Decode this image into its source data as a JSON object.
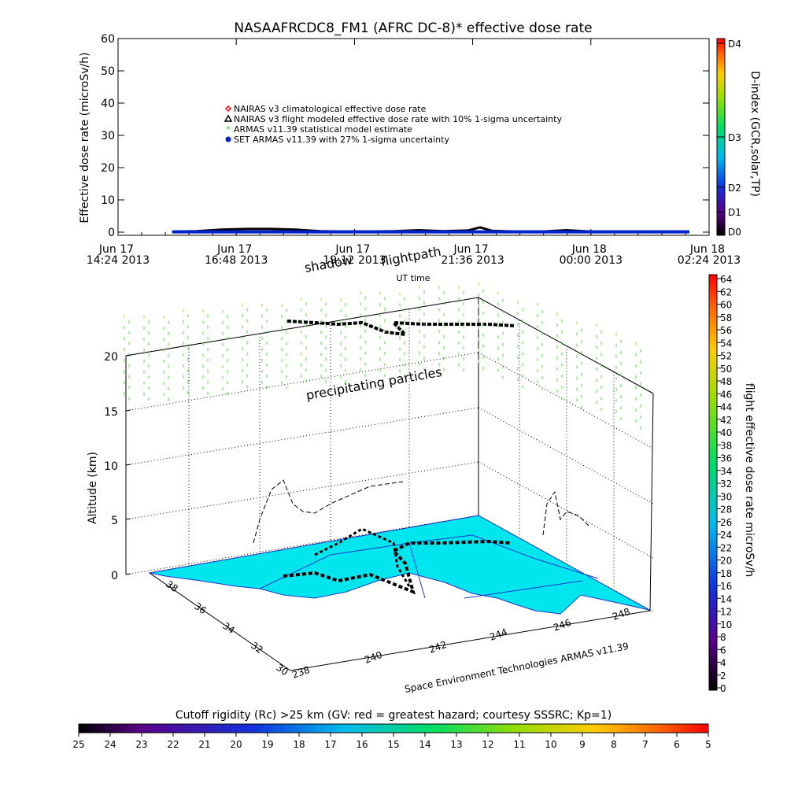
{
  "chart_data": [
    {
      "type": "line",
      "title": "NASAAFRCDC8_FM1 (AFRC DC-8)* effective dose rate",
      "ylabel": "Effective dose rate (microSv/h)",
      "xlabel": "UT time",
      "ylim": [
        0,
        60
      ],
      "yticks": [
        "0",
        "10",
        "20",
        "30",
        "40",
        "50",
        "60"
      ],
      "xticks": [
        {
          "l1": "Jun 17",
          "l2": "14:24 2013"
        },
        {
          "l1": "Jun 17",
          "l2": "16:48 2013"
        },
        {
          "l1": "Jun 17",
          "l2": "19:12 2013"
        },
        {
          "l1": "Jun 17",
          "l2": "21:36 2013"
        },
        {
          "l1": "Jun 18",
          "l2": "00:00 2013"
        },
        {
          "l1": "Jun 18",
          "l2": "02:24 2013"
        }
      ],
      "legend": [
        {
          "label": "NAIRAS v3 climatological effective dose rate",
          "color": "#ff0000",
          "marker": "diamond"
        },
        {
          "label": "NAIRAS v3 flight modeled effective dose rate with 10% 1-sigma uncertainty",
          "color": "#000000",
          "marker": "triangle"
        },
        {
          "label": "ARMAS v11.39 statistical model estimate",
          "color": "#33cc33",
          "marker": "star"
        },
        {
          "label": "SET ARMAS v11.39 with 27% 1-sigma uncertainty",
          "color": "#0022cc",
          "marker": "circle"
        }
      ],
      "legend_position": "center-left",
      "series": [
        {
          "name": "NAIRAS v3 flight modeled effective dose rate with 10% 1-sigma uncertainty",
          "x": [
            "15:30",
            "16:00",
            "16:30",
            "17:00",
            "17:30",
            "18:00",
            "18:30",
            "19:00",
            "19:30",
            "20:00",
            "20:30",
            "21:00",
            "21:30",
            "21:45",
            "22:00",
            "22:30",
            "23:00",
            "23:30",
            "00:00",
            "00:30",
            "01:00",
            "01:30",
            "02:00"
          ],
          "values": [
            0.2,
            0.3,
            0.8,
            1.0,
            1.0,
            0.8,
            0.3,
            0.2,
            0.2,
            0.3,
            0.6,
            0.3,
            0.5,
            1.5,
            0.4,
            0.2,
            0.2,
            0.6,
            0.2,
            0.2,
            0.2,
            0.2,
            0.2
          ]
        },
        {
          "name": "SET ARMAS v11.39 with 27% 1-sigma uncertainty",
          "x": [
            "15:30",
            "16:30",
            "17:30",
            "18:30",
            "19:30",
            "20:30",
            "21:30",
            "22:30",
            "23:30",
            "00:30",
            "01:30",
            "02:00"
          ],
          "values": [
            0.1,
            0.1,
            0.1,
            0.1,
            0.1,
            0.1,
            0.1,
            0.1,
            0.1,
            0.1,
            0.1,
            0.1
          ]
        }
      ],
      "right_axis": {
        "label": "D-index (GCR,solar,TP)",
        "ticks": [
          "D0",
          "D1",
          "D2",
          "D3",
          "D4"
        ]
      }
    },
    {
      "type": "scatter",
      "zlabel": "Altitude (km)",
      "zticks": [
        "0",
        "5",
        "10",
        "15",
        "20"
      ],
      "lat_ticks": [
        "30",
        "32",
        "34",
        "36",
        "38"
      ],
      "lon_ticks": [
        "238",
        "240",
        "242",
        "244",
        "246",
        "248"
      ],
      "annotations": [
        "shadow",
        "flightpath",
        "precipitating particles"
      ],
      "credit": "Space Environment Technologies ARMAS v11.39",
      "flight_dose_colorbar": {
        "label": "flight effective dose rate microSv/h",
        "ticks": [
          "0",
          "2",
          "4",
          "6",
          "8",
          "10",
          "12",
          "14",
          "16",
          "18",
          "20",
          "22",
          "24",
          "26",
          "28",
          "30",
          "32",
          "34",
          "36",
          "38",
          "40",
          "42",
          "44",
          "46",
          "48",
          "50",
          "52",
          "54",
          "56",
          "58",
          "60",
          "62",
          "64"
        ]
      },
      "cutoff_colorbar": {
        "label": "Cutoff rigidity (Rc) >25 km (GV: red = greatest hazard; courtesy SSSRC; Kp=1)",
        "ticks": [
          "25",
          "24",
          "23",
          "22",
          "21",
          "20",
          "19",
          "18",
          "17",
          "16",
          "15",
          "14",
          "13",
          "12",
          "11",
          "10",
          "9",
          "8",
          "7",
          "6",
          "5"
        ]
      }
    }
  ]
}
